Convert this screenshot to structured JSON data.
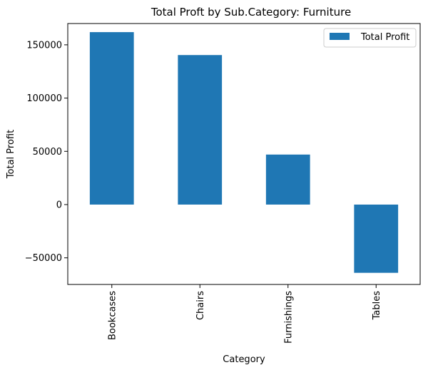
{
  "chart_data": {
    "type": "bar",
    "title": "Total Proft by Sub.Category: Furniture",
    "xlabel": "Category",
    "ylabel": "Total Profit",
    "categories": [
      "Bookcases",
      "Chairs",
      "Furnishings",
      "Tables"
    ],
    "series": [
      {
        "name": "Total Profit",
        "values": [
          161924,
          140396,
          46968,
          -64083
        ]
      }
    ],
    "yticks": [
      -50000,
      0,
      50000,
      100000,
      150000
    ],
    "ylim": [
      -75000,
      170000
    ],
    "grid": false,
    "legend": "top-right",
    "bar_color": "#1f77b4"
  }
}
